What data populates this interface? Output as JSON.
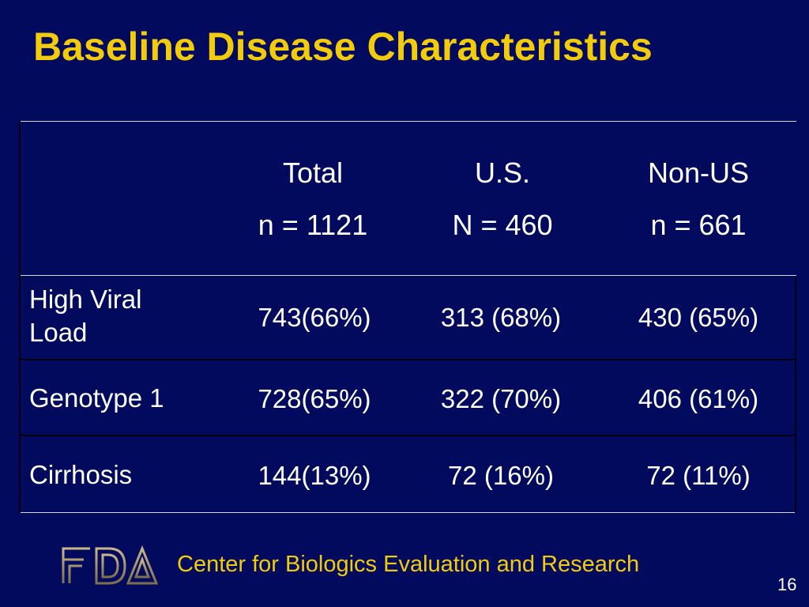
{
  "slide": {
    "title": "Baseline Disease Characteristics",
    "footer": "Center for Biologics Evaluation and Research",
    "page_number": "16",
    "logo_text": "FDA"
  },
  "table": {
    "columns": [
      {
        "name": "Total",
        "n": "n = 1121"
      },
      {
        "name": "U.S.",
        "n": "N = 460"
      },
      {
        "name": "Non-US",
        "n": "n = 661"
      }
    ],
    "rows": [
      {
        "label_line1": "High Viral",
        "label_line2": "Load",
        "values": [
          "743(66%)",
          "313 (68%)",
          "430 (65%)"
        ]
      },
      {
        "label_line1": "Genotype 1",
        "label_line2": "",
        "values": [
          "728(65%)",
          "322 (70%)",
          "406 (61%)"
        ]
      },
      {
        "label_line1": "Cirrhosis",
        "label_line2": "",
        "values": [
          "144(13%)",
          "72 (16%)",
          "72 (11%)"
        ]
      }
    ]
  },
  "colors": {
    "background": "#020a5e",
    "title": "#f2cc0c",
    "text": "#ffffff"
  }
}
